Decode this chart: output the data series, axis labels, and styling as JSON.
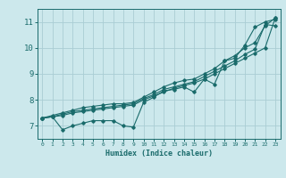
{
  "xlabel": "Humidex (Indice chaleur)",
  "ylabel": "",
  "bg_color": "#cce8ec",
  "grid_color": "#aacdd4",
  "line_color": "#1a6b6b",
  "x_values": [
    0,
    1,
    2,
    3,
    4,
    5,
    6,
    7,
    8,
    9,
    10,
    11,
    12,
    13,
    14,
    15,
    16,
    17,
    18,
    19,
    20,
    21,
    22,
    23
  ],
  "series": [
    [
      7.3,
      7.35,
      6.85,
      7.0,
      7.1,
      7.2,
      7.2,
      7.2,
      7.0,
      6.95,
      7.9,
      8.1,
      8.35,
      8.4,
      8.5,
      8.3,
      8.8,
      8.6,
      9.5,
      9.6,
      10.1,
      10.8,
      11.0,
      11.1
    ],
    [
      7.3,
      7.35,
      7.4,
      7.5,
      7.55,
      7.6,
      7.65,
      7.7,
      7.75,
      7.8,
      8.0,
      8.15,
      8.3,
      8.45,
      8.55,
      8.65,
      8.8,
      9.0,
      9.2,
      9.4,
      9.6,
      9.8,
      10.0,
      11.15
    ],
    [
      7.3,
      7.4,
      7.5,
      7.6,
      7.7,
      7.75,
      7.8,
      7.85,
      7.85,
      7.9,
      8.1,
      8.3,
      8.5,
      8.65,
      8.75,
      8.8,
      9.0,
      9.2,
      9.5,
      9.7,
      10.0,
      10.2,
      10.85,
      11.15
    ],
    [
      7.3,
      7.35,
      7.45,
      7.55,
      7.6,
      7.65,
      7.7,
      7.75,
      7.8,
      7.85,
      8.05,
      8.2,
      8.4,
      8.5,
      8.6,
      8.7,
      8.9,
      9.1,
      9.3,
      9.5,
      9.75,
      9.95,
      10.9,
      10.85
    ]
  ],
  "ylim": [
    6.5,
    11.5
  ],
  "yticks": [
    7,
    8,
    9,
    10,
    11
  ],
  "xlim": [
    -0.5,
    23.5
  ],
  "xticks": [
    0,
    1,
    2,
    3,
    4,
    5,
    6,
    7,
    8,
    9,
    10,
    11,
    12,
    13,
    14,
    15,
    16,
    17,
    18,
    19,
    20,
    21,
    22,
    23
  ]
}
